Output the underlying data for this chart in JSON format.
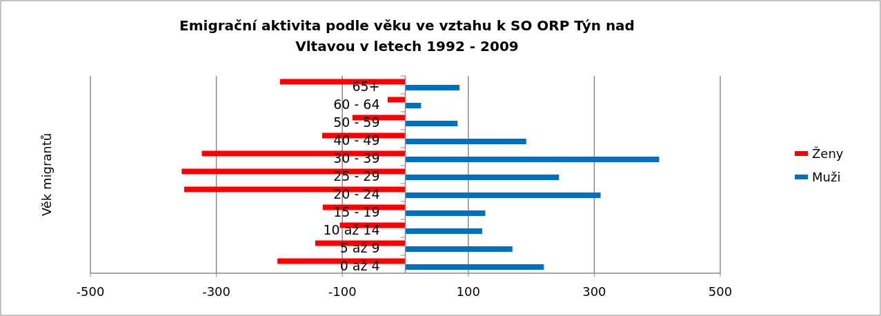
{
  "chart_data": {
    "type": "bar",
    "orientation": "horizontal",
    "title": "Emigrační aktivita podle věku ve vztahu k SO ORP Týn nad Vltavou v letech 1992 - 2009",
    "ylabel": "Věk migrantů",
    "categories": [
      "65+",
      "60 - 64",
      "50 - 59",
      "40 - 49",
      "30 - 39",
      "25 - 29",
      "20 - 24",
      "15 - 19",
      "10 až 14",
      "5 až 9",
      "0 až 4"
    ],
    "series": [
      {
        "name": "Ženy",
        "color": "#ff0000",
        "values": [
          -199,
          -28,
          -84,
          -132,
          -323,
          -355,
          -351,
          -131,
          -104,
          -143,
          -203
        ]
      },
      {
        "name": "Muži",
        "color": "#0070c0",
        "values": [
          86,
          25,
          83,
          192,
          403,
          244,
          310,
          127,
          122,
          170,
          220
        ]
      }
    ],
    "xlim": [
      -500,
      500
    ],
    "xticks": [
      -500,
      -300,
      -100,
      100,
      300,
      500
    ],
    "grid": "x",
    "legend": "right"
  }
}
